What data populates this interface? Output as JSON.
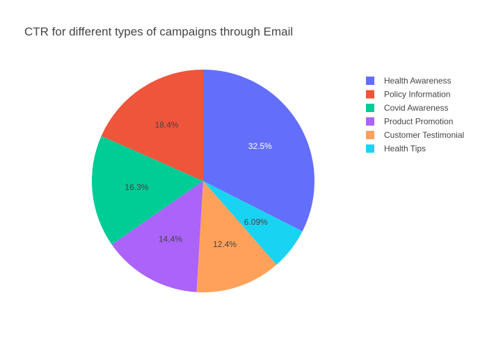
{
  "chart_data": {
    "type": "pie",
    "title": "CTR for different types of campaigns through Email",
    "legend_position": "top-right",
    "slices": [
      {
        "label": "Health Awareness",
        "percent": 32.5,
        "display": "32.5%",
        "color": "#636efa",
        "text_color": "#ffffff"
      },
      {
        "label": "Policy Information",
        "percent": 18.4,
        "display": "18.4%",
        "color": "#ef553b",
        "text_color": "#444444"
      },
      {
        "label": "Covid Awareness",
        "percent": 16.3,
        "display": "16.3%",
        "color": "#00cc96",
        "text_color": "#444444"
      },
      {
        "label": "Product Promotion",
        "percent": 14.4,
        "display": "14.4%",
        "color": "#ab63fa",
        "text_color": "#444444"
      },
      {
        "label": "Customer Testimonial",
        "percent": 12.4,
        "display": "12.4%",
        "color": "#ffa15a",
        "text_color": "#444444"
      },
      {
        "label": "Health Tips",
        "percent": 6.09,
        "display": "6.09%",
        "color": "#19d3f3",
        "text_color": "#444444"
      }
    ],
    "pie_draw_order": [
      "Health Awareness",
      "Health Tips",
      "Customer Testimonial",
      "Product Promotion",
      "Covid Awareness",
      "Policy Information"
    ]
  }
}
